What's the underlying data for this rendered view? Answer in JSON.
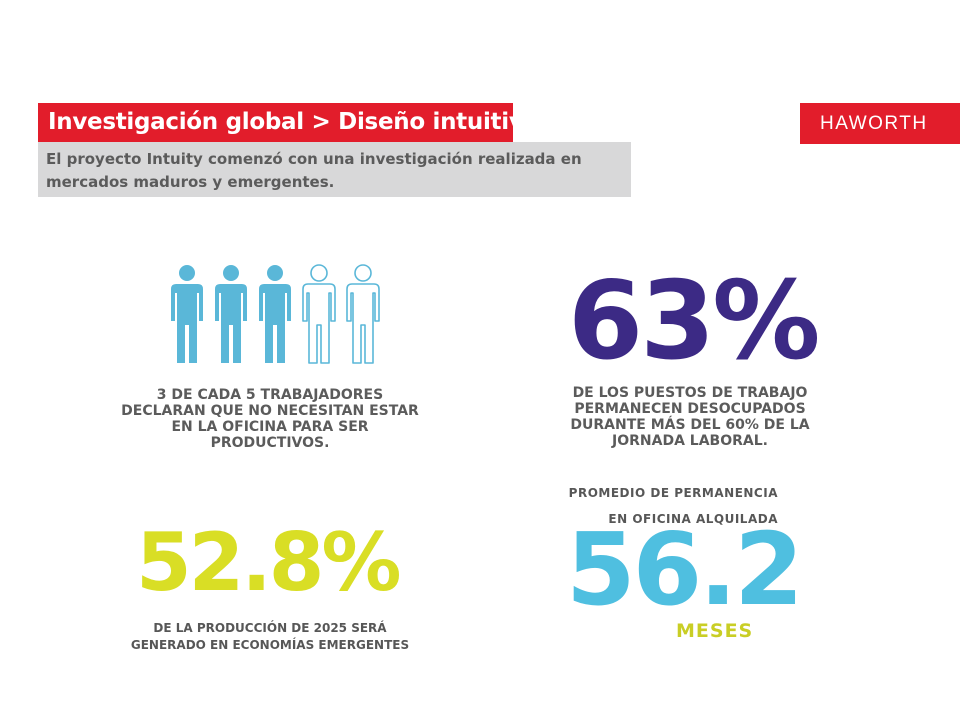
{
  "header": {
    "title": "Investigación global > Diseño intuitivo",
    "subtitle": "El proyecto Intuity comenzó con una investigación realizada en mercados maduros y emergentes.",
    "logo": "HAWORTH"
  },
  "colors": {
    "brand_red": "#e21d2b",
    "purple": "#3c2a85",
    "yellow": "#d9de25",
    "blue": "#4fbfe0",
    "icon_blue": "#5ab7d8"
  },
  "stats": {
    "workers": {
      "icon": "people-icon",
      "filled": 3,
      "total": 5,
      "text": "3 DE CADA 5 TRABAJADORES DECLARAN QUE NO NECESITAN ESTAR EN LA OFICINA PARA SER PRODUCTIVOS."
    },
    "desks": {
      "value": "63%",
      "text": "DE LOS PUESTOS DE TRABAJO PERMANECEN DESOCUPADOS DURANTE MÁS DEL 60% DE LA JORNADA LABORAL."
    },
    "production": {
      "value": "52.8%",
      "text": "DE LA PRODUCCIÓN DE 2025 SERÁ GENERADO EN ECONOMÍAS EMERGENTES"
    },
    "tenure": {
      "label_line1": "PROMEDIO DE PERMANENCIA",
      "label_line2": "EN OFICINA ALQUILADA",
      "value": "56.2",
      "unit": "MESES"
    }
  }
}
